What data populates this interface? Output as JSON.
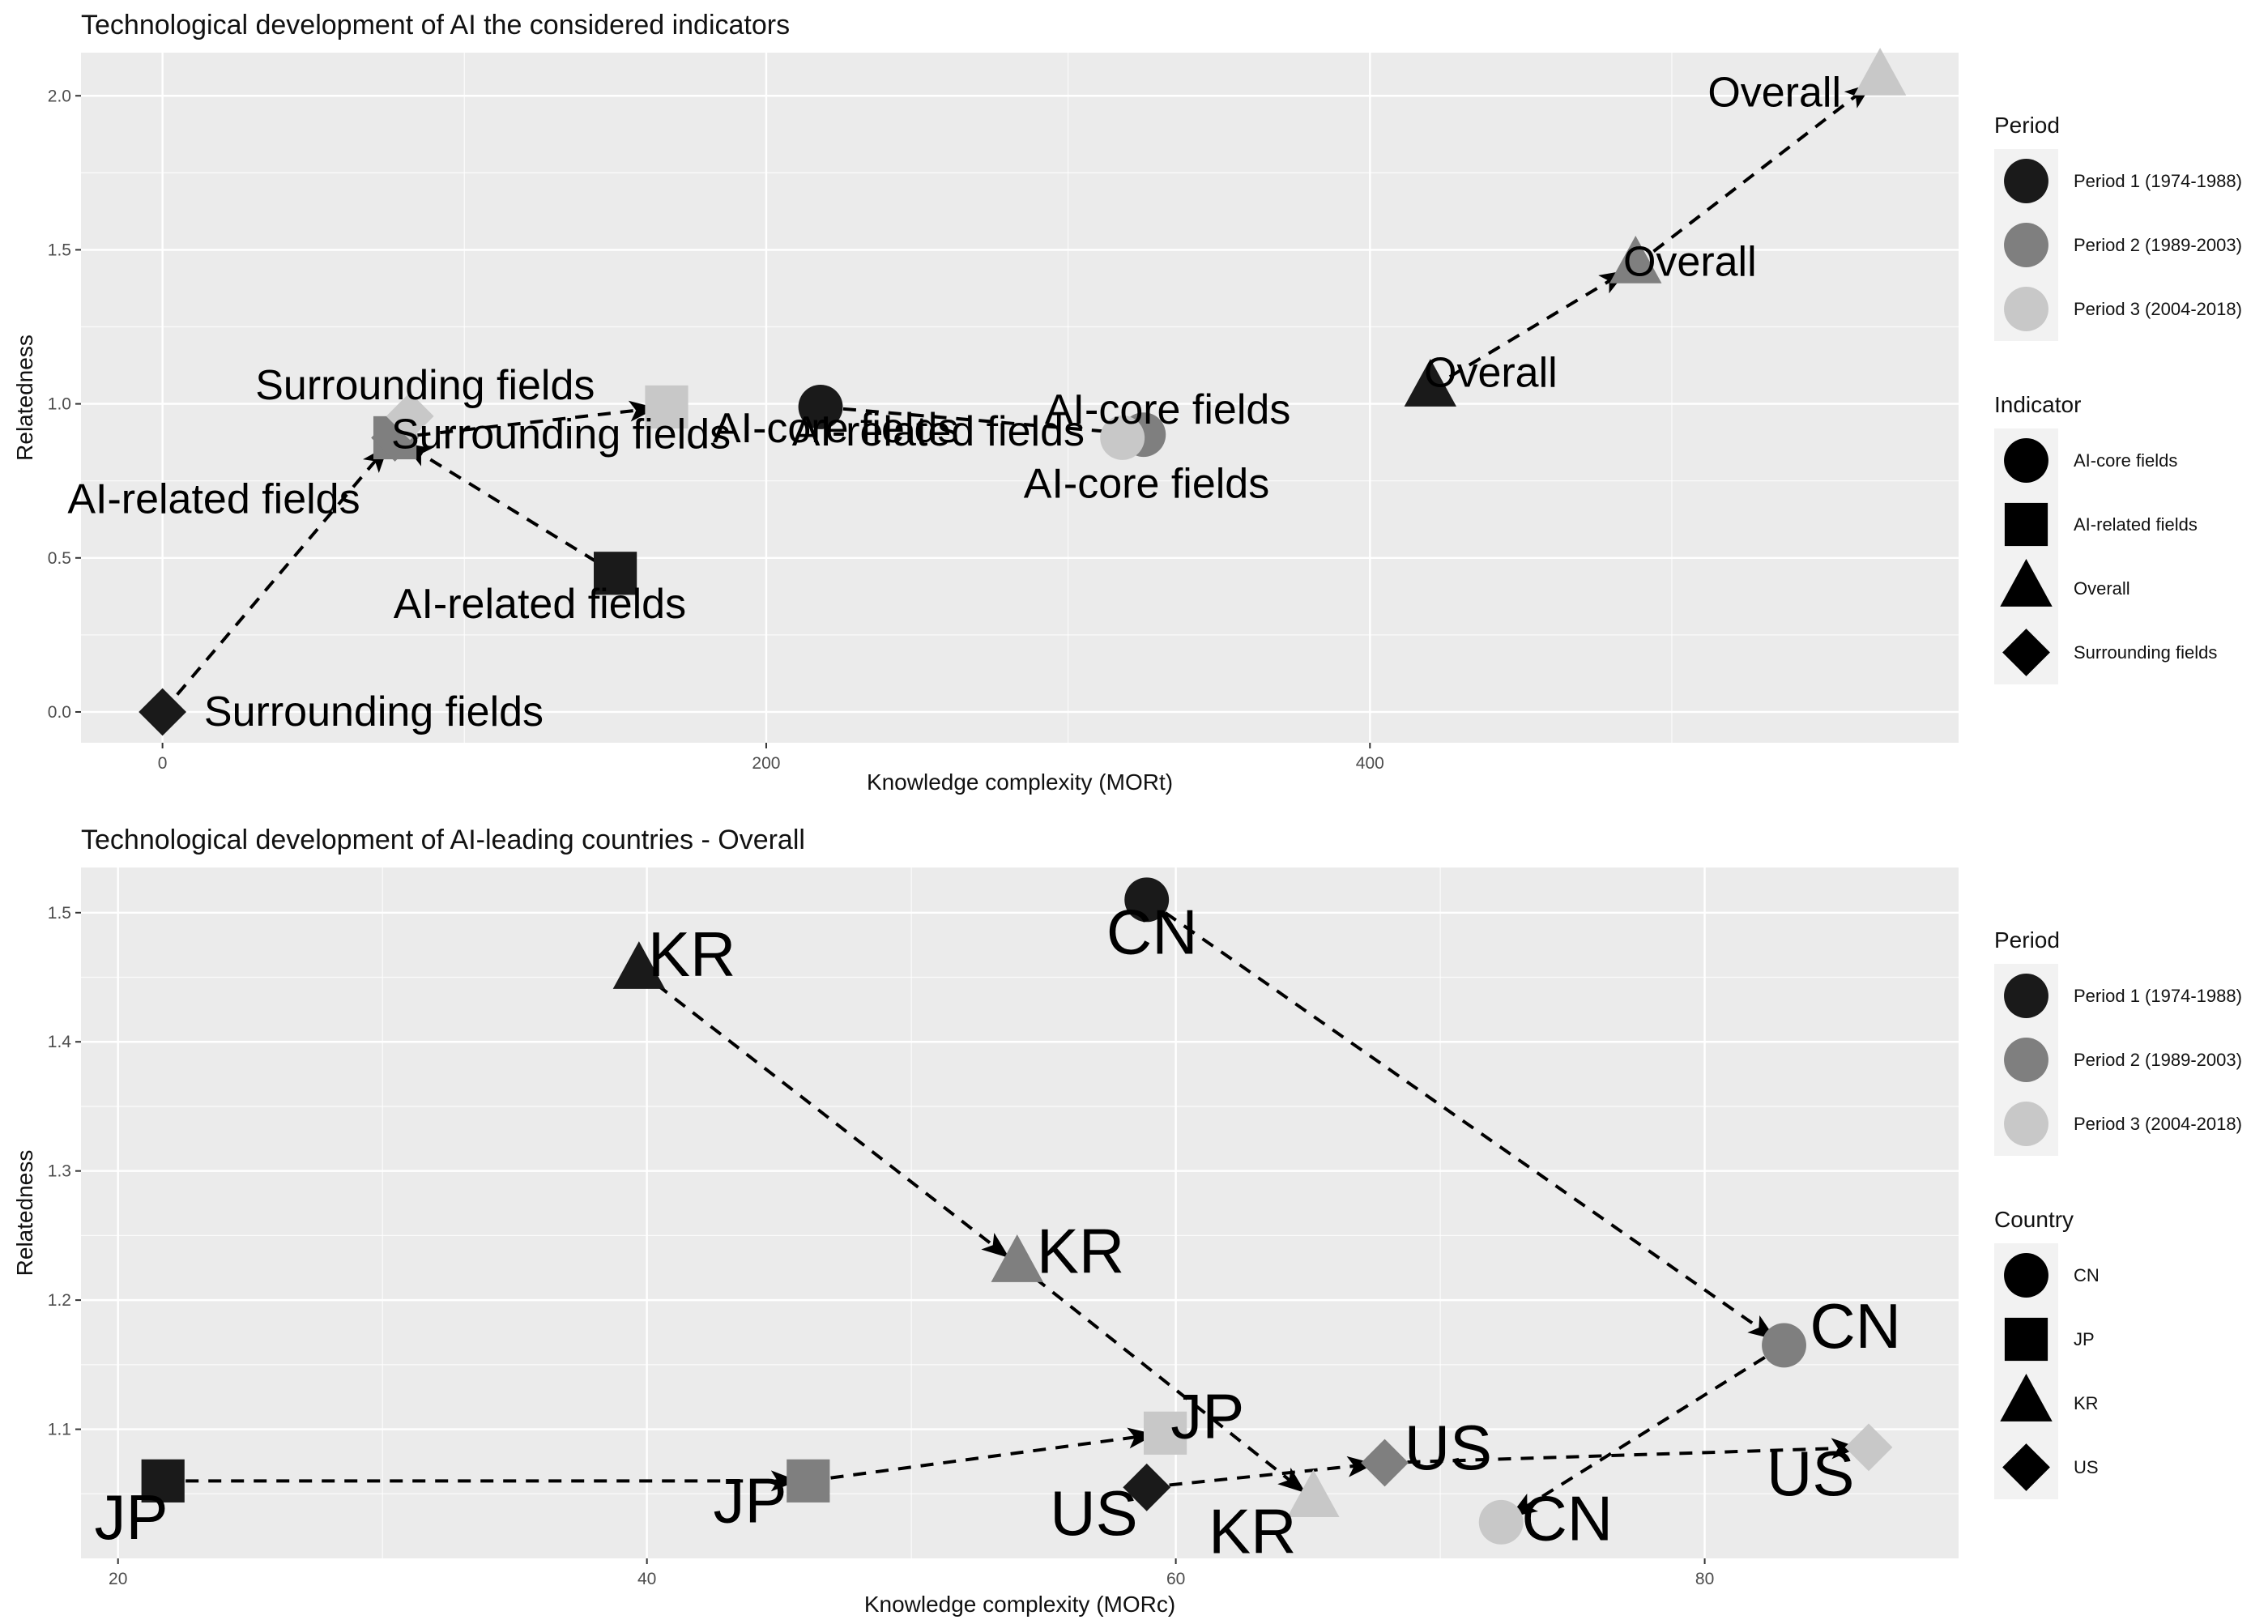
{
  "colors": {
    "panel_bg": "#EBEBEB",
    "grid_major": "#FFFFFF",
    "legend_key_bg": "#F2F2F2",
    "period_1": "#1A1A1A",
    "period_2": "#7F7F7F",
    "period_3": "#C8C8C8",
    "shape_key": "#000000",
    "arrow": "#000000"
  },
  "chart_data": [
    {
      "type": "scatter",
      "title": "Technological development of AI the considered indicators",
      "xlabel": "Knowledge complexity (MORt)",
      "ylabel": "Relatedness",
      "xlim": [
        -27,
        595
      ],
      "ylim": [
        -0.1,
        2.14
      ],
      "xticks": [
        0,
        200,
        400
      ],
      "yticks": [
        0.0,
        0.5,
        1.0,
        1.5,
        2.0
      ],
      "xtick_labels": [
        "0",
        "200",
        "400"
      ],
      "ytick_labels": [
        "0.0",
        "0.5",
        "1.0",
        "1.5",
        "2.0"
      ],
      "grid": true,
      "legend_position": "right",
      "legends": [
        {
          "title": "Period",
          "kind": "color",
          "items": [
            {
              "label": "Period 1 (1974-1988)",
              "color": "#1A1A1A",
              "shape": "circle"
            },
            {
              "label": "Period 2 (1989-2003)",
              "color": "#7F7F7F",
              "shape": "circle"
            },
            {
              "label": "Period 3 (2004-2018)",
              "color": "#C8C8C8",
              "shape": "circle"
            }
          ]
        },
        {
          "title": "Indicator",
          "kind": "shape",
          "items": [
            {
              "label": "AI-core fields",
              "shape": "circle"
            },
            {
              "label": "AI-related fields",
              "shape": "square"
            },
            {
              "label": "Overall",
              "shape": "triangle"
            },
            {
              "label": "Surrounding fields",
              "shape": "diamond"
            }
          ]
        }
      ],
      "series": [
        {
          "group": "AI-core fields",
          "shape": "circle",
          "points": [
            {
              "x": 218,
              "y": 0.99,
              "period": 1,
              "label": "AI-core fields",
              "label_dx": 5,
              "label_dy": -0.07
            },
            {
              "x": 325,
              "y": 0.9,
              "period": 2,
              "label": "AI-core fields",
              "label_dx": 8,
              "label_dy": 0.08
            },
            {
              "x": 318,
              "y": 0.89,
              "period": 3,
              "label": "AI-core fields",
              "label_dx": 8,
              "label_dy": -0.15
            }
          ]
        },
        {
          "group": "AI-related fields",
          "shape": "square",
          "points": [
            {
              "x": 150,
              "y": 0.45,
              "period": 1,
              "label": "AI-related fields",
              "label_dx": -25,
              "label_dy": -0.1
            },
            {
              "x": 77,
              "y": 0.89,
              "period": 2,
              "label": "AI-related fields",
              "label_dx": -60,
              "label_dy": -0.2
            },
            {
              "x": 167,
              "y": 0.99,
              "period": 3,
              "label": "AI-related fields",
              "label_dx": 90,
              "label_dy": -0.08
            }
          ]
        },
        {
          "group": "Overall",
          "shape": "triangle",
          "points": [
            {
              "x": 420,
              "y": 1.05,
              "period": 1,
              "label": "Overall",
              "label_dx": 20,
              "label_dy": 0.05
            },
            {
              "x": 488,
              "y": 1.45,
              "period": 2,
              "label": "Overall",
              "label_dx": 18,
              "label_dy": 0.01
            },
            {
              "x": 569,
              "y": 2.06,
              "period": 3,
              "label": "Overall",
              "label_dx": -35,
              "label_dy": -0.05
            }
          ]
        },
        {
          "group": "Surrounding fields",
          "shape": "diamond",
          "points": [
            {
              "x": 0,
              "y": 0.0,
              "period": 1,
              "label": "Surrounding fields",
              "label_dx": 70,
              "label_dy": 0.0
            },
            {
              "x": 77,
              "y": 0.89,
              "period": 2,
              "label": "Surrounding fields",
              "label_dx": 10,
              "label_dy": 0.17
            },
            {
              "x": 82,
              "y": 0.96,
              "period": 3,
              "label": "Surrounding fields",
              "label_dx": 50,
              "label_dy": -0.06
            }
          ]
        }
      ]
    },
    {
      "type": "scatter",
      "title": "Technological development of AI-leading countries - Overall",
      "xlabel": "Knowledge complexity (MORc)",
      "ylabel": "Relatedness",
      "xlim": [
        18.6,
        89.6
      ],
      "ylim": [
        1.0,
        1.535
      ],
      "xticks": [
        20,
        40,
        60,
        80
      ],
      "yticks": [
        1.1,
        1.2,
        1.3,
        1.4,
        1.5
      ],
      "xtick_labels": [
        "20",
        "40",
        "60",
        "80"
      ],
      "ytick_labels": [
        "1.1",
        "1.2",
        "1.3",
        "1.4",
        "1.5"
      ],
      "grid": true,
      "legend_position": "right",
      "legends": [
        {
          "title": "Period",
          "kind": "color",
          "items": [
            {
              "label": "Period 1 (1974-1988)",
              "color": "#1A1A1A",
              "shape": "circle"
            },
            {
              "label": "Period 2 (1989-2003)",
              "color": "#7F7F7F",
              "shape": "circle"
            },
            {
              "label": "Period 3 (2004-2018)",
              "color": "#C8C8C8",
              "shape": "circle"
            }
          ]
        },
        {
          "title": "Country",
          "kind": "shape",
          "items": [
            {
              "label": "CN",
              "shape": "circle"
            },
            {
              "label": "JP",
              "shape": "square"
            },
            {
              "label": "KR",
              "shape": "triangle"
            },
            {
              "label": "US",
              "shape": "diamond"
            }
          ]
        }
      ],
      "series": [
        {
          "group": "CN",
          "shape": "circle",
          "points": [
            {
              "x": 58.9,
              "y": 1.51,
              "period": 1,
              "label": "CN",
              "label_dx": 0.2,
              "label_dy": -0.025
            },
            {
              "x": 83.0,
              "y": 1.165,
              "period": 2,
              "label": "CN",
              "label_dx": 2.7,
              "label_dy": 0.015
            },
            {
              "x": 72.3,
              "y": 1.028,
              "period": 3,
              "label": "CN",
              "label_dx": 2.5,
              "label_dy": 0.003
            }
          ]
        },
        {
          "group": "JP",
          "shape": "square",
          "points": [
            {
              "x": 21.7,
              "y": 1.06,
              "period": 1,
              "label": "JP",
              "label_dx": -1.2,
              "label_dy": -0.028
            },
            {
              "x": 46.1,
              "y": 1.06,
              "period": 2,
              "label": "JP",
              "label_dx": -2.2,
              "label_dy": -0.015
            },
            {
              "x": 59.6,
              "y": 1.097,
              "period": 3,
              "label": "JP",
              "label_dx": 1.6,
              "label_dy": 0.013
            }
          ]
        },
        {
          "group": "KR",
          "shape": "triangle",
          "points": [
            {
              "x": 39.7,
              "y": 1.455,
              "period": 1,
              "label": "KR",
              "label_dx": 2.0,
              "label_dy": 0.013
            },
            {
              "x": 54.0,
              "y": 1.228,
              "period": 2,
              "label": "KR",
              "label_dx": 2.4,
              "label_dy": 0.01
            },
            {
              "x": 65.2,
              "y": 1.046,
              "period": 3,
              "label": "KR",
              "label_dx": -2.3,
              "label_dy": -0.025
            }
          ]
        },
        {
          "group": "US",
          "shape": "diamond",
          "points": [
            {
              "x": 58.9,
              "y": 1.055,
              "period": 1,
              "label": "US",
              "label_dx": -2.0,
              "label_dy": -0.02
            },
            {
              "x": 67.9,
              "y": 1.074,
              "period": 2,
              "label": "US",
              "label_dx": 2.4,
              "label_dy": 0.012
            },
            {
              "x": 86.2,
              "y": 1.086,
              "period": 3,
              "label": "US",
              "label_dx": -2.2,
              "label_dy": -0.02
            }
          ]
        }
      ]
    }
  ]
}
